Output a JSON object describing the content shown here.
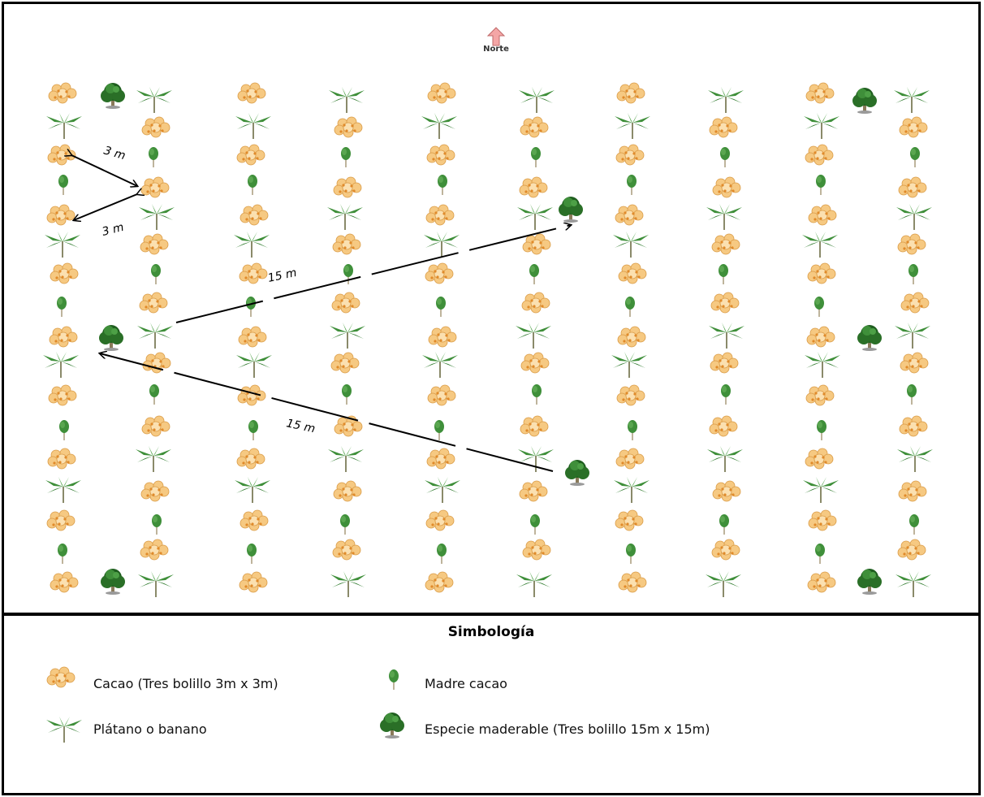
{
  "north": {
    "label": "Norte"
  },
  "distances": {
    "cacao_top": "3 m",
    "cacao_bottom": "3 m",
    "timber_upper": "15 m",
    "timber_lower": "15 m"
  },
  "legend": {
    "title": "Simbología",
    "items": [
      {
        "icon": "cacao-icon",
        "label": "Cacao (Tres bolillo 3m x 3m)"
      },
      {
        "icon": "madre-cacao-icon",
        "label": "Madre cacao"
      },
      {
        "icon": "banana-icon",
        "label": "Plátano o banano"
      },
      {
        "icon": "timber-tree-icon",
        "label": "Especie maderable (Tres bolillo 15m x 15m)"
      }
    ]
  },
  "colors": {
    "cacao_fill": "#f6c982",
    "cacao_dot": "#e79a36",
    "foliage": "#3f8f3a",
    "foliage_dark": "#1f5e1f",
    "trunk": "#9a8a6a",
    "north_arrow": "#f4a6a6",
    "border": "#000000"
  }
}
